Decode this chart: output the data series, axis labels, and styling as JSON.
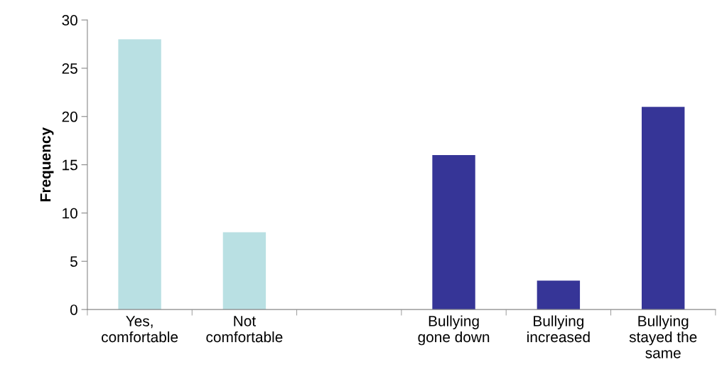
{
  "chart_data": {
    "type": "bar",
    "ylabel": "Frequency",
    "categories": [
      "Yes,\ncomfortable",
      "Not\ncomfortable",
      null,
      "Bullying\ngone down",
      "Bullying\nincreased",
      "Bullying\nstayed the\nsame"
    ],
    "values": [
      28,
      8,
      null,
      16,
      3,
      21
    ],
    "colors": [
      "#b9e0e3",
      "#b9e0e3",
      null,
      "#363597",
      "#363597",
      "#363597"
    ],
    "ylim": [
      0,
      30
    ],
    "yticks": [
      0,
      5,
      10,
      15,
      20,
      25,
      30
    ],
    "grid": false,
    "legend": false
  }
}
